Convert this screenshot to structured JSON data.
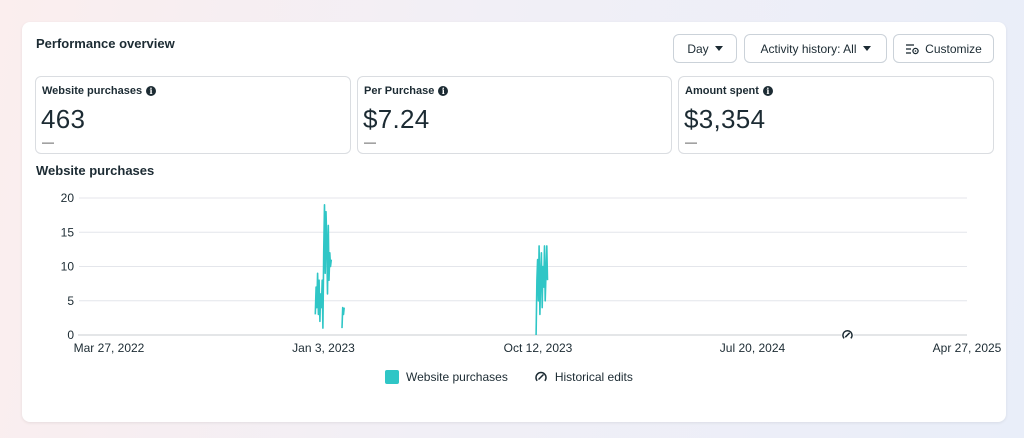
{
  "header": {
    "title": "Performance overview"
  },
  "controls": {
    "day_label": "Day",
    "activity_label": "Activity history: All",
    "customize_label": "Customize"
  },
  "metrics": [
    {
      "label": "Website purchases",
      "value": "463",
      "delta": "—"
    },
    {
      "label": "Per Purchase",
      "value": "$7.24",
      "delta": "—"
    },
    {
      "label": "Amount spent",
      "value": "$3,354",
      "delta": "—"
    }
  ],
  "chart_title": "Website purchases",
  "colors": {
    "series": "#2fc6c6",
    "grid": "#e4e6eb"
  },
  "chart_data": {
    "type": "line",
    "y_ticks": [
      "0",
      "5",
      "10",
      "15",
      "20"
    ],
    "ylim": [
      0,
      20
    ],
    "x_tick_labels": [
      "Mar 27, 2022",
      "Jan 3, 2023",
      "Oct 12, 2023",
      "Jul 20, 2024",
      "Apr 27, 2025"
    ],
    "xlim": [
      "2022-03-27",
      "2025-04-27"
    ],
    "grid": true,
    "legend_position": "bottom",
    "series": [
      {
        "name": "Website purchases",
        "points": [
          [
            "2022-12-23",
            3
          ],
          [
            "2022-12-24",
            7
          ],
          [
            "2022-12-25",
            4
          ],
          [
            "2022-12-26",
            9
          ],
          [
            "2022-12-27",
            3
          ],
          [
            "2022-12-28",
            8
          ],
          [
            "2022-12-29",
            2
          ],
          [
            "2022-12-30",
            6
          ],
          [
            "2022-12-31",
            4
          ],
          [
            "2023-01-01",
            8
          ],
          [
            "2023-01-02",
            1
          ],
          [
            "2023-01-03",
            12
          ],
          [
            "2023-01-04",
            19
          ],
          [
            "2023-01-05",
            9
          ],
          [
            "2023-01-06",
            18
          ],
          [
            "2023-01-07",
            14
          ],
          [
            "2023-01-08",
            6
          ],
          [
            "2023-01-09",
            16
          ],
          [
            "2023-01-10",
            8
          ],
          [
            "2023-01-11",
            12
          ],
          [
            "2023-01-12",
            10
          ],
          [
            "2023-01-13",
            11
          ],
          [
            "2023-01-27",
            1
          ],
          [
            "2023-01-28",
            4
          ],
          [
            "2023-01-29",
            3
          ],
          [
            "2023-01-30",
            4
          ],
          [
            "2023-10-09",
            0
          ],
          [
            "2023-10-10",
            8
          ],
          [
            "2023-10-11",
            11
          ],
          [
            "2023-10-12",
            5
          ],
          [
            "2023-10-13",
            13
          ],
          [
            "2023-10-14",
            3
          ],
          [
            "2023-10-15",
            9
          ],
          [
            "2023-10-16",
            12
          ],
          [
            "2023-10-17",
            4
          ],
          [
            "2023-10-18",
            10
          ],
          [
            "2023-10-19",
            7
          ],
          [
            "2023-10-20",
            13
          ],
          [
            "2023-10-21",
            5
          ],
          [
            "2023-10-22",
            9
          ],
          [
            "2023-10-23",
            13
          ],
          [
            "2023-10-24",
            8
          ]
        ]
      }
    ],
    "annotations": [
      {
        "name": "Historical edits",
        "date": "2024-11-21"
      }
    ]
  },
  "legend": {
    "series_label": "Website purchases",
    "edits_label": "Historical edits"
  }
}
